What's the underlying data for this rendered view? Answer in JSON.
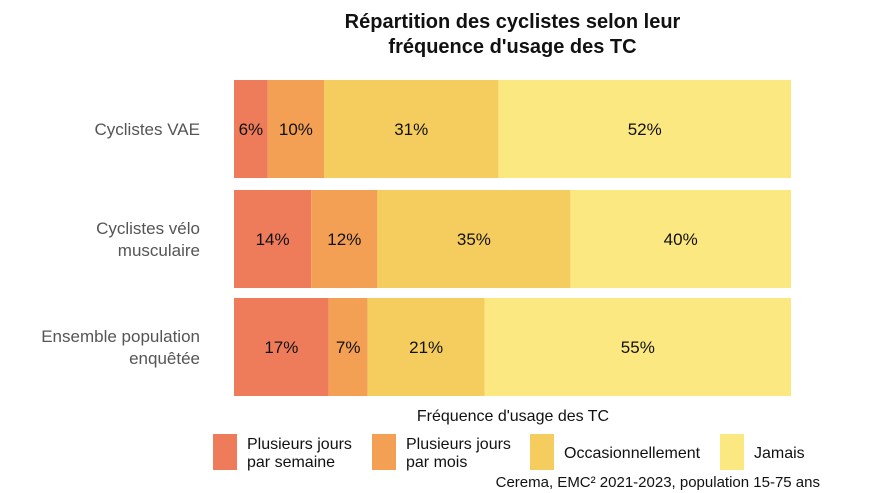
{
  "chart_data": {
    "type": "bar",
    "orientation": "horizontal",
    "stacked": true,
    "normalized": true,
    "title_lines": [
      "Répartition des cyclistes selon leur",
      "fréquence d'usage des TC"
    ],
    "categories": [
      {
        "label_lines": [
          "Cyclistes VAE"
        ]
      },
      {
        "label_lines": [
          "Cyclistes vélo",
          "musculaire"
        ]
      },
      {
        "label_lines": [
          "Ensemble population",
          "enquêtée"
        ]
      }
    ],
    "series": [
      {
        "name_lines": [
          "Plusieurs jours",
          "par semaine"
        ],
        "color": "#EE7B5A",
        "values": [
          6,
          14,
          17
        ]
      },
      {
        "name_lines": [
          "Plusieurs jours",
          "par mois"
        ],
        "color": "#F3A055",
        "values": [
          10,
          12,
          7
        ]
      },
      {
        "name_lines": [
          "Occasionnellement"
        ],
        "color": "#F5CD5E",
        "values": [
          31,
          35,
          21
        ]
      },
      {
        "name_lines": [
          "Jamais"
        ],
        "color": "#FBE880",
        "values": [
          52,
          40,
          55
        ]
      }
    ],
    "value_suffix": "%",
    "legend_title": "Fréquence d'usage des TC",
    "legend_position": "bottom",
    "grid": false,
    "source": "Cerema, EMC² 2021-2023, population 15-75 ans"
  }
}
